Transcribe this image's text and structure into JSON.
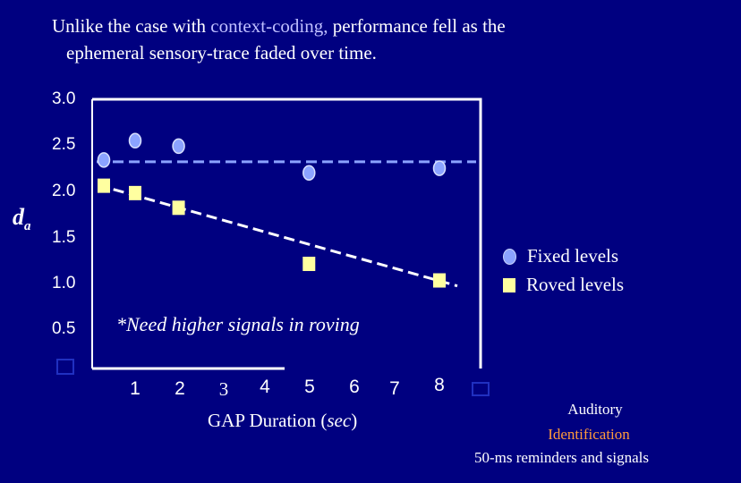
{
  "title": {
    "line1_before": "Unlike the case with ",
    "line1_highlight": "context-coding,",
    "line1_after": " performance fell as the",
    "line2": "ephemeral sensory-trace faded over time."
  },
  "colors": {
    "background": "#000080",
    "fixed": "#8ba3ff",
    "roved": "#ffffa0",
    "highlight": "#c0c0ff",
    "source_orange": "#ff9a3c"
  },
  "chart_data": {
    "type": "scatter",
    "ylim": [
      0.5,
      3.0
    ],
    "xlim": [
      0.5,
      8.5
    ],
    "y_ticks": [
      "3.0",
      "2.5",
      "2.0",
      "1.5",
      "1.0",
      "0.5"
    ],
    "x_ticks": [
      "1",
      "2",
      "3",
      "4",
      "5",
      "6",
      "7",
      "8"
    ],
    "xlabel_main": "GAP Duration (",
    "xlabel_unit": "sec",
    "xlabel_close": ")",
    "ylabel": "d",
    "ylabel_sub": "a",
    "series": [
      {
        "name": "Fixed levels",
        "marker": "circle",
        "x": [
          0.5,
          1,
          2,
          5,
          8
        ],
        "y": [
          2.34,
          2.55,
          2.49,
          2.2,
          2.25
        ]
      },
      {
        "name": "Roved levels",
        "marker": "square",
        "x": [
          0.5,
          1,
          2,
          5,
          8
        ],
        "y": [
          2.06,
          1.98,
          1.82,
          1.21,
          1.03
        ]
      }
    ],
    "reference_line": {
      "y": 2.32,
      "style": "dashed"
    },
    "trend_line": {
      "x": [
        0.5,
        8
      ],
      "y": [
        2.02,
        0.97
      ],
      "style": "dashed"
    },
    "annotation": "*Need higher signals in roving",
    "legend_position": "right"
  },
  "source": {
    "line1": "Auditory",
    "line2": "Identification",
    "line3": "50-ms reminders and signals"
  }
}
